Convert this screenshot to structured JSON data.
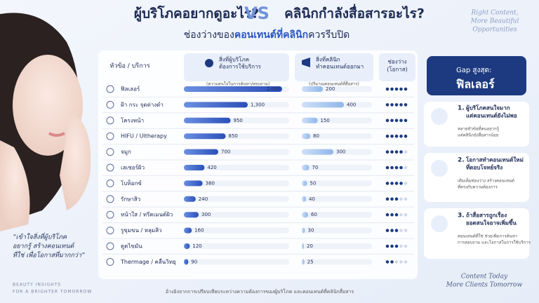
{
  "header": {
    "title_left": "ผู้บริโภคอยากดูอะไร?",
    "vs": "VS",
    "title_right": "คลินิกกำลังสื่อสารอะไร?",
    "subtitle_parts": [
      "ช่องว่างของ",
      "คอนเทนต์ที่คลินิก",
      "ควรรีบปิด"
    ],
    "tagline": [
      "Right Content,",
      "More Beautiful",
      "Opportunities"
    ]
  },
  "table": {
    "col_topic": "หัวข้อ / บริการ",
    "col_consumer": [
      "สิ่งที่ผู้บริโภค",
      "ต้องการใช้บริการ"
    ],
    "col_consumer_note": "(ความสนใจในการค้นหา/สอบถาม)",
    "col_clinic": [
      "สิ่งที่คลินิก",
      "ทำคอนเทนต์ออกมา"
    ],
    "col_clinic_note": "(ปริมาณคอนเทนต์ที่สื่อสาร)",
    "col_gap": [
      "ช่องว่าง",
      "(โอกาส)"
    ],
    "rows": [
      {
        "topic": "ฟิลเลอร์",
        "consumer": 2000,
        "consumer_label": "2,000",
        "clinic": 200,
        "gap": 5
      },
      {
        "topic": "ฝ้า กระ จุดด่างดำ",
        "consumer": 1300,
        "consumer_label": "1,300",
        "clinic": 400,
        "gap": 5
      },
      {
        "topic": "โครงหน้า",
        "consumer": 950,
        "consumer_label": "950",
        "clinic": 150,
        "gap": 5
      },
      {
        "topic": "HIFU / Ultherapy",
        "consumer": 850,
        "consumer_label": "850",
        "clinic": 80,
        "gap": 5
      },
      {
        "topic": "จมูก",
        "consumer": 700,
        "consumer_label": "700",
        "clinic": 300,
        "gap": 4
      },
      {
        "topic": "เลเซอร์ผิว",
        "consumer": 420,
        "consumer_label": "420",
        "clinic": 70,
        "gap": 4
      },
      {
        "topic": "โบท็อกซ์",
        "consumer": 380,
        "consumer_label": "380",
        "clinic": 50,
        "gap": 4
      },
      {
        "topic": "รักษาสิว",
        "consumer": 240,
        "consumer_label": "240",
        "clinic": 40,
        "gap": 3
      },
      {
        "topic": "หน้าใส / ทรีตเมนต์ผิว",
        "consumer": 300,
        "consumer_label": "300",
        "clinic": 60,
        "gap": 3
      },
      {
        "topic": "รูขุมขน / หลุมสิว",
        "consumer": 160,
        "consumer_label": "160",
        "clinic": 30,
        "gap": 3
      },
      {
        "topic": "ดูดไขมัน",
        "consumer": 120,
        "consumer_label": "120",
        "clinic": 20,
        "gap": 3
      },
      {
        "topic": "Thermage / คลื่นวิทยุ",
        "consumer": 90,
        "consumer_label": "90",
        "clinic": 25,
        "gap": 2
      }
    ],
    "footnote": "อ้างอิงจากการเปรียบเทียบระหว่างความต้องการของผู้บริโภค และคอนเทนต์ที่คลินิกสื่อสาร"
  },
  "panel": {
    "badge_label": "Gap สูงสุด:",
    "badge_value": "ฟิลเลอร์",
    "items": [
      {
        "num": "1.",
        "title": [
          "ผู้บริโภคสนใจมาก",
          "แต่คอนเทนต์ยังไม่พอ"
        ],
        "desc": [
          "หลายหัวข้อที่คนอยากรู้",
          "แต่คลินิกยังสื่อสารน้อย"
        ]
      },
      {
        "num": "2.",
        "title": [
          "โอกาสทำคอนเทนต์ใหม่",
          "ที่ตอบโจทย์จริง"
        ],
        "desc": [
          "เติมเต็มช่องว่าง สร้างคอนเทนต์",
          "ที่ตรงกับความต้องการ"
        ]
      },
      {
        "num": "3.",
        "title": [
          "ถ้าสื่อสารถูกเรื่อง",
          "ยอดสนใจอาจเพิ่มขึ้น"
        ],
        "desc": [
          "คอนเทนต์ที่ใช่ ช่วยเพิ่มการค้นหา",
          "การสอบถาม และโอกาสในการใช้บริการ"
        ]
      }
    ]
  },
  "left": {
    "quote": [
      "“เข้าใจสิ่งที่ผู้บริโภค",
      "อยากรู้ สร้างคอนเทนต์",
      "ที่ใช่ เพื่อโอกาสที่มากกว่า”"
    ],
    "brand": [
      "BEAUTY INSIGHTS",
      "FOR A BRIGHTER TOMORROW"
    ],
    "slogan": [
      "Content Today",
      "More Clients Tomorrow"
    ]
  }
}
